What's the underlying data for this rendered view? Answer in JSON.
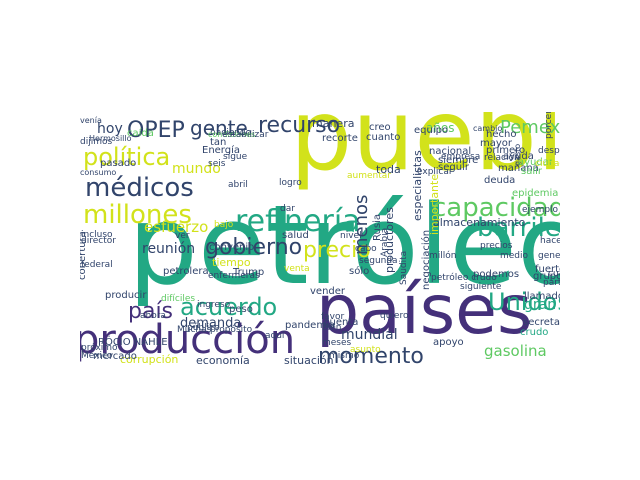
{
  "wordcloud": {
    "palette": {
      "yellow": "#d2e21b",
      "teal": "#22a884",
      "green": "#5ec962",
      "navy": "#31446b",
      "purple": "#44307a",
      "dark": "#3b2b6b"
    },
    "words": [
      "petróleo",
      "países",
      "pueblo",
      "producción",
      "refinería",
      "capacidad",
      "millones",
      "médicos",
      "política",
      "OPEP",
      "gente",
      "recurso",
      "Pemex",
      "barriles",
      "gobierno",
      "acuerdo",
      "país",
      "momento",
      "precio",
      "Unidos",
      "esfuerzo",
      "reunión",
      "mundial",
      "demanda",
      "gasolina",
      "menos",
      "almacenamiento",
      "años",
      "hoy",
      "mundo",
      "situación",
      "economía",
      "corrupción",
      "cobertura",
      "petrolera",
      "mercado",
      "tiempo",
      "Trump",
      "especialistas",
      "importante",
      "productores",
      "negociación",
      "llamado",
      "secretaria",
      "gran",
      "fuerte",
      "grupo",
      "podemos",
      "apoyo",
      "cuenta",
      "salud",
      "pandemia",
      "manera",
      "recorte",
      "creo",
      "cuanto",
      "siempre",
      "nacional",
      "mañana",
      "deuda",
      "ayuda",
      "primero",
      "mayor",
      "hecho",
      "toda",
      "seguir",
      "producir",
      "peso",
      "RÓCIO NAHLE",
      "próximo",
      "México",
      "Energía",
      "tan",
      "pasado",
      "dijimos",
      "consumo",
      "Hermosillo",
      "caída",
      "venía",
      "haciendo",
      "condiciones",
      "estabilizar",
      "equipo",
      "cambio",
      "porcentaje",
      "gasto",
      "ayudar",
      "salir",
      "ejemplo",
      "ciudad",
      "epidemia",
      "crudo",
      "enfermeras",
      "seis",
      "venta",
      "favor",
      "asunto",
      "bien",
      "mismo",
      "meses",
      "vender",
      "sólo",
      "Arabia",
      "Rusia",
      "convenio",
      "director",
      "federal",
      "público",
      "propósito",
      "Muchas",
      "cual",
      "parte",
      "Saudita",
      "petróleo crudo",
      "segunda",
      "cabo",
      "dar",
      "incluso",
      "general",
      "bajo",
      "ingreso",
      "difíciles",
      "logro",
      "abril",
      "sigue",
      "empresa",
      "relación",
      "siguiente",
      "explicar",
      "después",
      "aumentar",
      "millón",
      "medio",
      "precios",
      "nivel",
      "ver",
      "ahora",
      "quiero",
      "aquí",
      "hace",
      "día"
    ]
  }
}
